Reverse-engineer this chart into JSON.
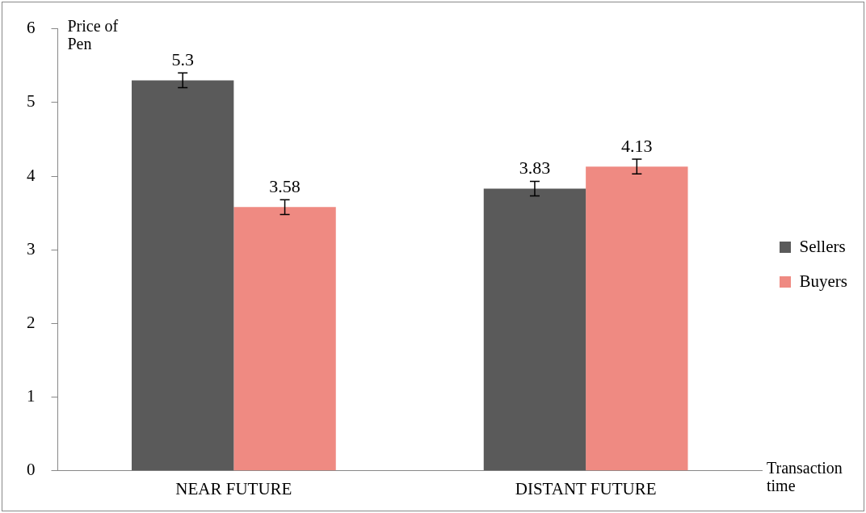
{
  "chart_data": {
    "type": "bar",
    "ylabel": "Price of Pen",
    "xlabel": "Transaction time",
    "categories": [
      "NEAR FUTURE",
      "DISTANT FUTURE"
    ],
    "series": [
      {
        "name": "Sellers",
        "color": "#5a5a5a",
        "values": [
          5.3,
          3.83
        ],
        "errors": [
          0.1,
          0.1
        ]
      },
      {
        "name": "Buyers",
        "color": "#ef8a82",
        "values": [
          3.58,
          4.13
        ],
        "errors": [
          0.1,
          0.1
        ]
      }
    ],
    "ylim": [
      0,
      6
    ],
    "yticks": [
      0,
      1,
      2,
      3,
      4,
      5,
      6
    ],
    "grid": false,
    "legend": "right",
    "data_labels": true
  }
}
